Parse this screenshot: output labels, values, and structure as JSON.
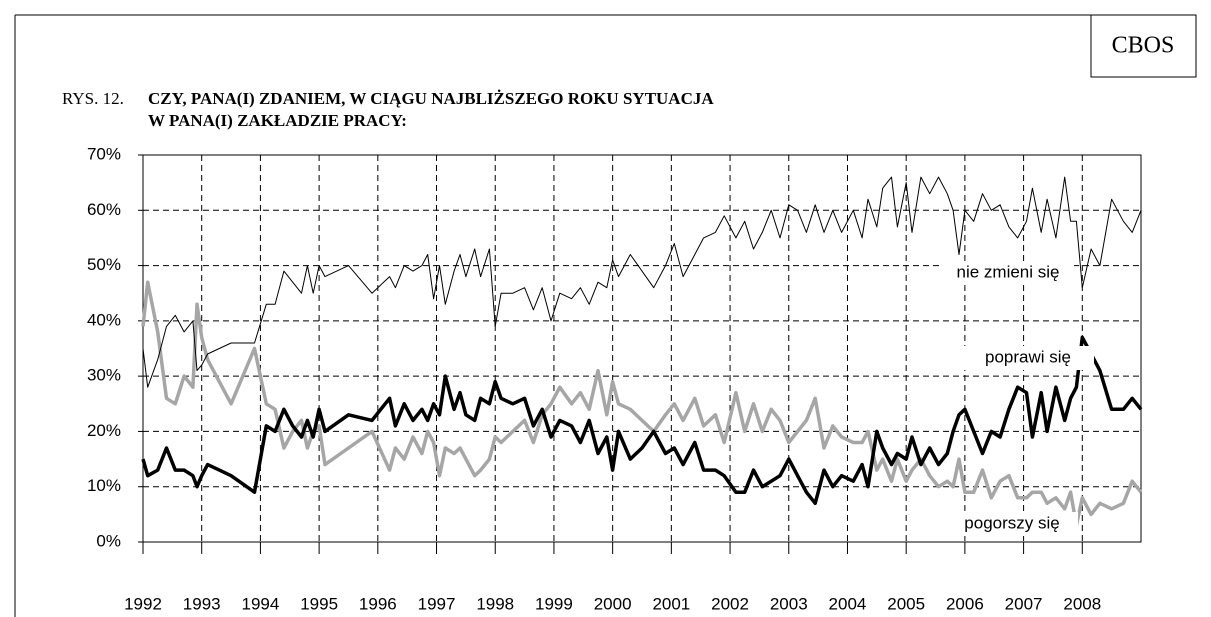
{
  "chart_data": {
    "type": "line",
    "source": "CBOS",
    "figure_label": "RYS. 12.",
    "title": [
      "CZY, PANA(I) ZDANIEM, W CIĄGU NAJBLIŻSZEGO ROKU SYTUACJA",
      "W PANA(I) ZAKŁADZIE PRACY:"
    ],
    "x": [
      1992.0,
      1992.08,
      1992.25,
      1992.4,
      1992.55,
      1992.7,
      1992.85,
      1992.92,
      1993.0,
      1993.1,
      1993.3,
      1993.5,
      1993.9,
      1994.1,
      1994.25,
      1994.4,
      1994.55,
      1994.7,
      1994.8,
      1994.9,
      1995.0,
      1995.1,
      1995.5,
      1995.9,
      1996.2,
      1996.3,
      1996.45,
      1996.6,
      1996.75,
      1996.85,
      1996.95,
      1997.05,
      1997.15,
      1997.3,
      1997.4,
      1997.5,
      1997.65,
      1997.75,
      1997.9,
      1998.0,
      1998.1,
      1998.3,
      1998.5,
      1998.65,
      1998.8,
      1998.95,
      1999.1,
      1999.3,
      1999.45,
      1999.6,
      1999.75,
      1999.9,
      2000.0,
      2000.1,
      2000.3,
      2000.5,
      2000.7,
      2000.9,
      2001.05,
      2001.2,
      2001.4,
      2001.55,
      2001.75,
      2001.9,
      2002.1,
      2002.25,
      2002.4,
      2002.55,
      2002.7,
      2002.85,
      2003.0,
      2003.15,
      2003.3,
      2003.45,
      2003.6,
      2003.75,
      2003.9,
      2004.1,
      2004.25,
      2004.35,
      2004.5,
      2004.6,
      2004.75,
      2004.85,
      2005.0,
      2005.1,
      2005.25,
      2005.4,
      2005.55,
      2005.7,
      2005.8,
      2005.9,
      2006.0,
      2006.15,
      2006.3,
      2006.45,
      2006.6,
      2006.75,
      2006.9,
      2007.05,
      2007.15,
      2007.3,
      2007.4,
      2007.55,
      2007.7,
      2007.8,
      2007.9,
      2008.0,
      2008.15,
      2008.3,
      2008.5,
      2008.7,
      2008.85,
      2009.0
    ],
    "series": [
      {
        "name": "nie zmieni się",
        "color": "#000000",
        "line_width": 1,
        "values": [
          35,
          28,
          33,
          39,
          41,
          38,
          40,
          31,
          32,
          34,
          35,
          36,
          36,
          43,
          43,
          49,
          47,
          45,
          50,
          45,
          50,
          48,
          50,
          45,
          48,
          46,
          50,
          49,
          50,
          52,
          44,
          50,
          43,
          49,
          52,
          48,
          53,
          48,
          53,
          39,
          45,
          45,
          46,
          42,
          46,
          40,
          45,
          44,
          46,
          43,
          47,
          46,
          51,
          48,
          52,
          49,
          46,
          50,
          54,
          48,
          52,
          55,
          56,
          59,
          55,
          58,
          53,
          56,
          60,
          55,
          61,
          60,
          56,
          61,
          56,
          60,
          56,
          60,
          55,
          62,
          57,
          64,
          66,
          57,
          65,
          56,
          66,
          63,
          66,
          63,
          60,
          52,
          60,
          58,
          63,
          60,
          61,
          57,
          55,
          58,
          64,
          56,
          62,
          55,
          66,
          58,
          58,
          46,
          53,
          50,
          62,
          58,
          56,
          60
        ]
      },
      {
        "name": "poprawi się",
        "color": "#000000",
        "line_width": 3.5,
        "values": [
          15,
          12,
          13,
          17,
          13,
          13,
          12,
          10,
          12,
          14,
          13,
          12,
          9,
          21,
          20,
          24,
          21,
          19,
          22,
          19,
          24,
          20,
          23,
          22,
          26,
          21,
          25,
          22,
          24,
          22,
          25,
          23,
          30,
          24,
          27,
          23,
          22,
          26,
          25,
          29,
          26,
          25,
          26,
          21,
          24,
          19,
          22,
          21,
          18,
          22,
          16,
          19,
          13,
          20,
          15,
          17,
          20,
          16,
          17,
          14,
          18,
          13,
          13,
          12,
          9,
          9,
          13,
          10,
          11,
          12,
          15,
          12,
          9,
          7,
          13,
          10,
          12,
          11,
          14,
          10,
          20,
          17,
          14,
          16,
          15,
          19,
          14,
          17,
          14,
          16,
          20,
          23,
          24,
          20,
          16,
          20,
          19,
          24,
          28,
          27,
          19,
          27,
          20,
          28,
          22,
          26,
          28,
          37,
          34,
          31,
          24,
          24,
          26,
          24
        ]
      },
      {
        "name": "pogorszy się",
        "color": "#a6a6a6",
        "line_width": 3.5,
        "values": [
          39,
          47,
          38,
          26,
          25,
          30,
          28,
          43,
          37,
          33,
          29,
          25,
          35,
          25,
          24,
          17,
          20,
          22,
          17,
          20,
          21,
          14,
          17,
          20,
          13,
          17,
          15,
          19,
          16,
          20,
          18,
          12,
          17,
          16,
          17,
          15,
          12,
          13,
          15,
          19,
          18,
          20,
          22,
          18,
          23,
          25,
          28,
          25,
          27,
          24,
          31,
          23,
          29,
          25,
          24,
          22,
          20,
          23,
          25,
          22,
          26,
          21,
          23,
          18,
          27,
          20,
          25,
          20,
          24,
          22,
          18,
          20,
          22,
          26,
          17,
          21,
          19,
          18,
          18,
          20,
          13,
          15,
          11,
          15,
          11,
          13,
          15,
          12,
          10,
          11,
          10,
          15,
          9,
          9,
          13,
          8,
          11,
          12,
          8,
          8,
          9,
          9,
          7,
          8,
          6,
          9,
          3,
          8,
          5,
          7,
          6,
          7,
          11,
          9
        ]
      }
    ],
    "xlim": [
      1992,
      2009
    ],
    "xticks": [
      1992,
      1993,
      1994,
      1995,
      1996,
      1997,
      1998,
      1999,
      2000,
      2001,
      2002,
      2003,
      2004,
      2005,
      2006,
      2007,
      2008
    ],
    "ylim": [
      0,
      70
    ],
    "yticks": [
      {
        "value": 0,
        "label": "0%"
      },
      {
        "value": 10,
        "label": "10%"
      },
      {
        "value": 20,
        "label": "20%"
      },
      {
        "value": 30,
        "label": "30%"
      },
      {
        "value": 40,
        "label": "40%"
      },
      {
        "value": 50,
        "label": "50%"
      },
      {
        "value": 60,
        "label": "60%"
      },
      {
        "value": 70,
        "label": "70%"
      }
    ],
    "grid": true
  }
}
